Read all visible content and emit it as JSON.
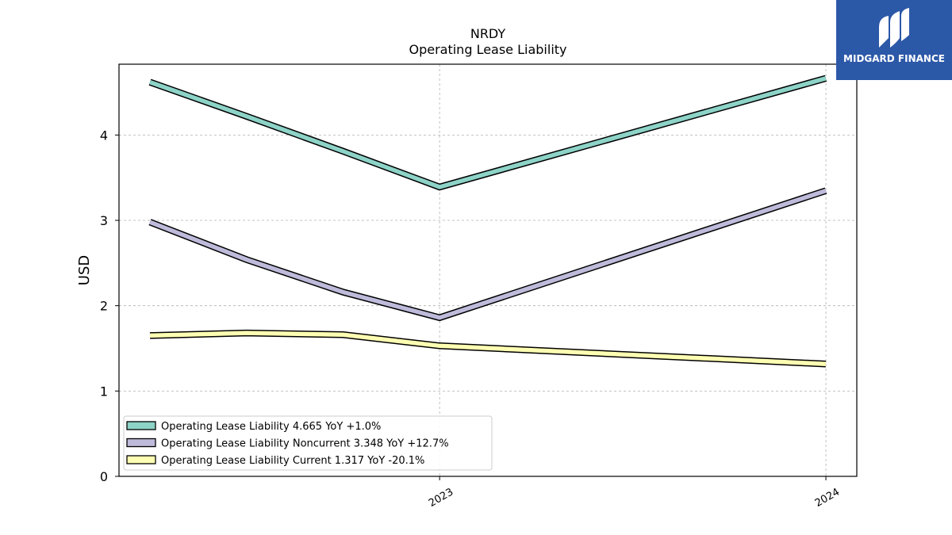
{
  "brand": {
    "name": "MIDGARD FINANCE",
    "color": "#2c58a8",
    "icon": "midgard-logo-icon"
  },
  "chart_data": {
    "type": "line",
    "title": "NRDY",
    "subtitle": "Operating Lease Liability",
    "xlabel": "",
    "ylabel": "USD",
    "ylim": [
      0,
      4.83
    ],
    "yticks": [
      0,
      1,
      2,
      3,
      4
    ],
    "xlim": [
      2022.17,
      2024.08
    ],
    "xticks": [
      {
        "value": 2023,
        "label": "2023"
      },
      {
        "value": 2024,
        "label": "2024"
      }
    ],
    "grid": true,
    "legend_position": "lower-left",
    "series": [
      {
        "name": "Operating Lease Liability  4.665 YoY +1.0%",
        "color": "#8dd3c7",
        "x": [
          2022.25,
          2022.5,
          2022.75,
          2023.0,
          2024.0
        ],
        "values": [
          4.62,
          4.22,
          3.81,
          3.39,
          4.665
        ]
      },
      {
        "name": "Operating Lease Liability Noncurrent  3.348 YoY +12.7%",
        "color": "#bebada",
        "x": [
          2022.25,
          2022.5,
          2022.75,
          2023.0,
          2024.0
        ],
        "values": [
          2.98,
          2.54,
          2.16,
          1.86,
          3.348
        ]
      },
      {
        "name": "Operating Lease Liability Current  1.317 YoY -20.1%",
        "color": "#ffffb3",
        "x": [
          2022.25,
          2022.5,
          2022.75,
          2023.0,
          2024.0
        ],
        "values": [
          1.65,
          1.68,
          1.66,
          1.53,
          1.317
        ]
      }
    ]
  }
}
